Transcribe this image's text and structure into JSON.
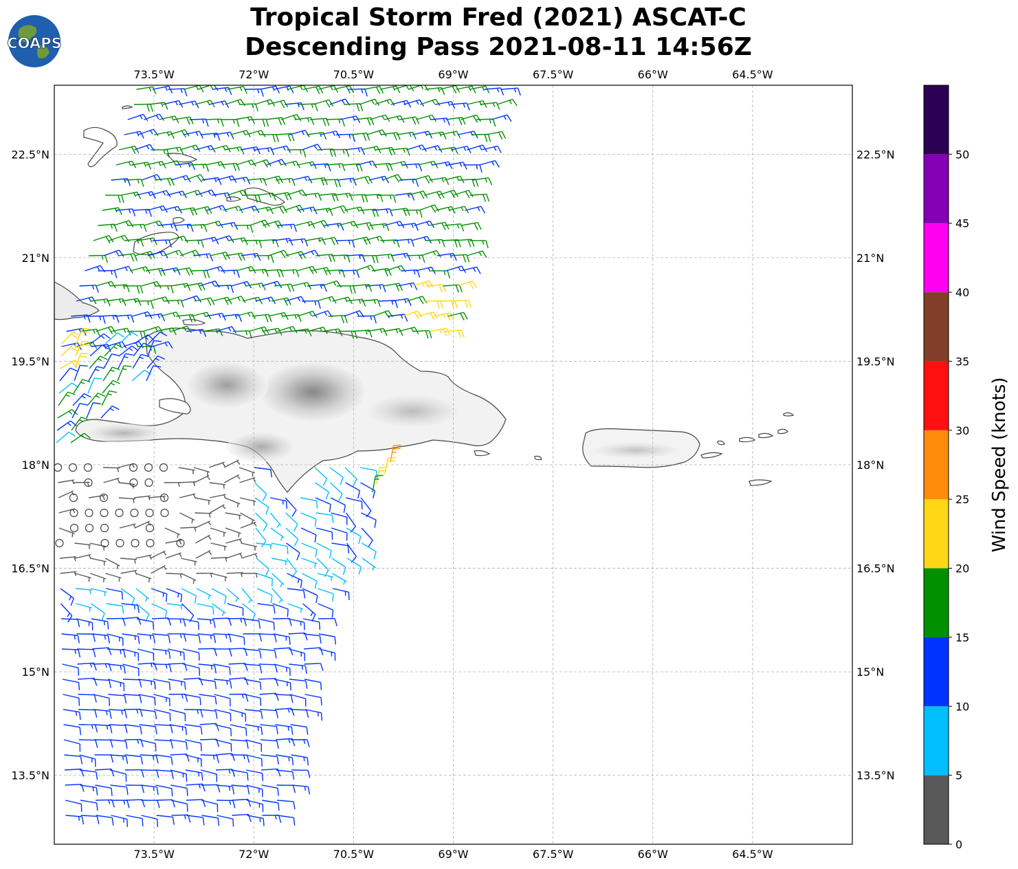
{
  "title": {
    "line1": "Tropical Storm Fred (2021) ASCAT-C",
    "line2": "Descending Pass 2021-08-11 14:56Z"
  },
  "logo": {
    "text": "COAPS",
    "icon": "globe-icon"
  },
  "map": {
    "lon_range": [
      -75,
      -63
    ],
    "lat_range": [
      12.5,
      23.5
    ],
    "lon_ticks": [
      {
        "value": -73.5,
        "label": "73.5°W"
      },
      {
        "value": -72,
        "label": "72°W"
      },
      {
        "value": -70.5,
        "label": "70.5°W"
      },
      {
        "value": -69,
        "label": "69°W"
      },
      {
        "value": -67.5,
        "label": "67.5°W"
      },
      {
        "value": -66,
        "label": "66°W"
      },
      {
        "value": -64.5,
        "label": "64.5°W"
      }
    ],
    "lat_ticks": [
      {
        "value": 22.5,
        "label": "22.5°N"
      },
      {
        "value": 21,
        "label": "21°N"
      },
      {
        "value": 19.5,
        "label": "19.5°N"
      },
      {
        "value": 18,
        "label": "18°N"
      },
      {
        "value": 16.5,
        "label": "16.5°N"
      },
      {
        "value": 15,
        "label": "15°N"
      },
      {
        "value": 13.5,
        "label": "13.5°N"
      }
    ],
    "grid": true
  },
  "colorbar": {
    "label": "Wind Speed (knots)",
    "ticks": [
      "0",
      "5",
      "10",
      "15",
      "20",
      "25",
      "30",
      "35",
      "40",
      "45",
      "50"
    ],
    "bins": [
      {
        "min": 0,
        "max": 5,
        "color": "#595959"
      },
      {
        "min": 5,
        "max": 10,
        "color": "#00bfff"
      },
      {
        "min": 10,
        "max": 15,
        "color": "#0033ff"
      },
      {
        "min": 15,
        "max": 20,
        "color": "#009000"
      },
      {
        "min": 20,
        "max": 25,
        "color": "#ffd714"
      },
      {
        "min": 25,
        "max": 30,
        "color": "#ff8c0a"
      },
      {
        "min": 30,
        "max": 35,
        "color": "#ff1010"
      },
      {
        "min": 35,
        "max": 40,
        "color": "#823e28"
      },
      {
        "min": 40,
        "max": 45,
        "color": "#ff00f0"
      },
      {
        "min": 45,
        "max": 50,
        "color": "#8400b4"
      },
      {
        "min": 50,
        "max": 55,
        "color": "#2c0055"
      }
    ]
  },
  "chart_data": {
    "type": "map",
    "variable": "wind barbs",
    "units": "knots",
    "swaths": [
      {
        "region": "north swath 19.5N-23.5N",
        "lon_range": [
          -74.5,
          -68
        ],
        "dominant_speed_kt": "15-20",
        "direction_from": "east"
      },
      {
        "region": "south swath 12.5N-18N",
        "lon_range": [
          -75,
          -70.2
        ],
        "dominant_speed_kt": "10-15",
        "direction_from": "east"
      }
    ],
    "calm_area": {
      "lat_range": [
        16.7,
        18
      ],
      "lon_range": [
        -75,
        -73
      ],
      "speed_kt": "0-5"
    }
  }
}
